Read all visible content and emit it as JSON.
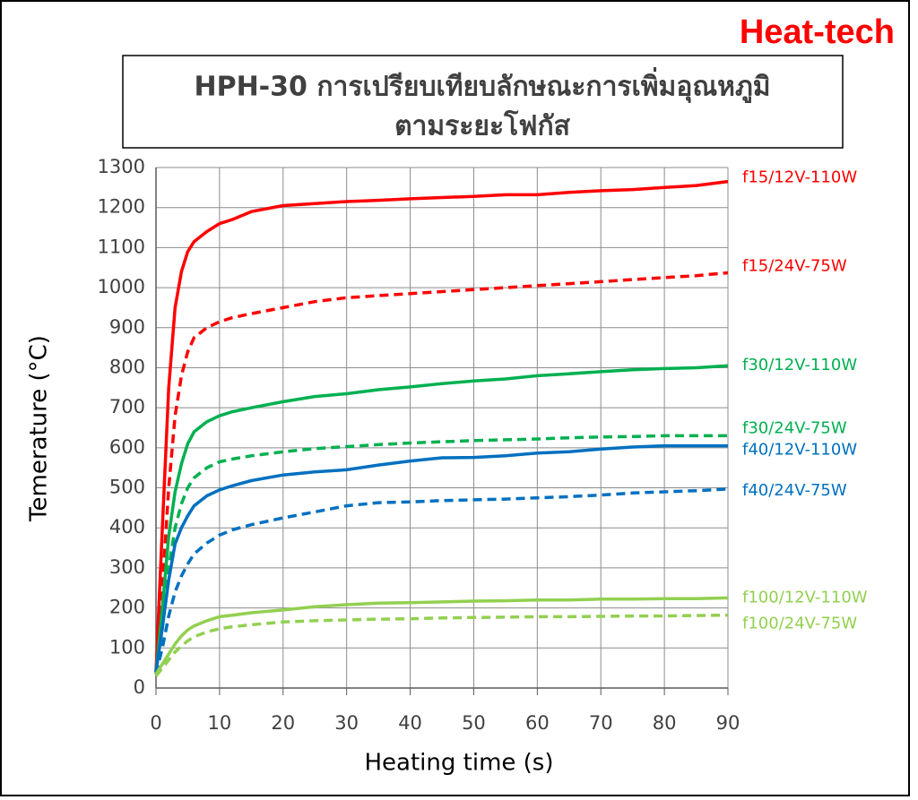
{
  "brand": "Heat-tech",
  "chart_data": {
    "type": "line",
    "title": [
      "HPH-30 การเปรียบเทียบลักษณะการเพิ่มอุณหภูมิ",
      "ตามระยะโฟกัส"
    ],
    "x_label": "Heating time (s)",
    "y_label": "Temerature (°C)",
    "x": [
      0,
      1,
      2,
      3,
      4,
      5,
      6,
      8,
      10,
      12,
      15,
      20,
      25,
      30,
      35,
      40,
      45,
      50,
      55,
      60,
      65,
      70,
      75,
      80,
      85,
      90
    ],
    "series": [
      {
        "name": "f15/12V-110W",
        "color": "#ff0000",
        "style": "solid",
        "values": [
          40,
          400,
          750,
          950,
          1040,
          1090,
          1115,
          1140,
          1160,
          1170,
          1190,
          1205,
          1210,
          1215,
          1218,
          1222,
          1225,
          1228,
          1232,
          1232,
          1238,
          1242,
          1245,
          1250,
          1255,
          1265
        ]
      },
      {
        "name": "f15/24V-75W",
        "color": "#ff0000",
        "style": "dashed",
        "values": [
          40,
          250,
          500,
          680,
          780,
          840,
          875,
          900,
          915,
          925,
          935,
          950,
          965,
          975,
          980,
          985,
          990,
          995,
          1000,
          1005,
          1010,
          1015,
          1020,
          1025,
          1030,
          1037
        ]
      },
      {
        "name": "f30/12V-110W",
        "color": "#00b050",
        "style": "solid",
        "values": [
          40,
          200,
          380,
          490,
          560,
          610,
          640,
          665,
          680,
          690,
          700,
          715,
          728,
          735,
          745,
          752,
          760,
          767,
          772,
          780,
          785,
          790,
          795,
          798,
          800,
          805
        ]
      },
      {
        "name": "f30/24V-75W",
        "color": "#00b050",
        "style": "dashed",
        "values": [
          35,
          150,
          300,
          400,
          460,
          500,
          525,
          550,
          565,
          572,
          580,
          590,
          598,
          603,
          608,
          612,
          615,
          618,
          620,
          622,
          625,
          627,
          628,
          630,
          630,
          630
        ]
      },
      {
        "name": "f40/12V-110W",
        "color": "#0070c0",
        "style": "solid",
        "values": [
          40,
          150,
          270,
          360,
          400,
          430,
          455,
          480,
          495,
          505,
          518,
          532,
          540,
          545,
          557,
          567,
          575,
          576,
          580,
          587,
          590,
          597,
          602,
          605,
          605,
          605
        ]
      },
      {
        "name": "f40/24V-75W",
        "color": "#0070c0",
        "style": "dashed",
        "values": [
          35,
          100,
          180,
          240,
          280,
          310,
          335,
          362,
          382,
          395,
          408,
          425,
          440,
          455,
          463,
          465,
          468,
          470,
          472,
          475,
          478,
          482,
          487,
          490,
          493,
          497
        ]
      },
      {
        "name": "f100/12V-110W",
        "color": "#92d050",
        "style": "solid",
        "values": [
          35,
          60,
          85,
          110,
          130,
          145,
          155,
          168,
          178,
          182,
          188,
          195,
          203,
          208,
          212,
          213,
          215,
          217,
          218,
          220,
          220,
          222,
          222,
          223,
          223,
          225
        ]
      },
      {
        "name": "f100/24V-75W",
        "color": "#92d050",
        "style": "dashed",
        "values": [
          30,
          50,
          70,
          90,
          105,
          118,
          128,
          140,
          148,
          153,
          158,
          165,
          168,
          170,
          172,
          173,
          175,
          176,
          177,
          178,
          178,
          179,
          180,
          180,
          181,
          182
        ]
      }
    ],
    "xlim": [
      0,
      90
    ],
    "xticks": [
      0,
      10,
      20,
      30,
      40,
      50,
      60,
      70,
      80,
      90
    ],
    "ylim": [
      0,
      1300
    ],
    "yticks": [
      0,
      100,
      200,
      300,
      400,
      500,
      600,
      700,
      800,
      900,
      1000,
      1100,
      1200,
      1300
    ],
    "grid": true
  }
}
